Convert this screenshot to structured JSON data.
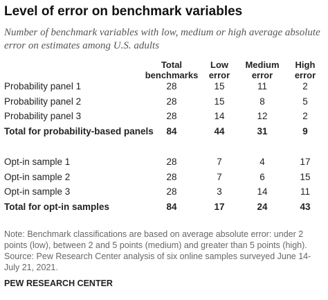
{
  "header": {
    "title": "Level of error on benchmark variables",
    "subtitle": "Number of benchmark variables with low, medium or high average absolute error on estimates among U.S. adults"
  },
  "table": {
    "columns": [
      "Total benchmarks",
      "Low error",
      "Medium error",
      "High error"
    ],
    "groups": [
      {
        "rows": [
          {
            "label": "Probability panel 1",
            "values": [
              28,
              15,
              11,
              2
            ]
          },
          {
            "label": "Probability panel 2",
            "values": [
              28,
              15,
              8,
              5
            ]
          },
          {
            "label": "Probability panel 3",
            "values": [
              28,
              14,
              12,
              2
            ]
          }
        ],
        "total": {
          "label": "Total for probability-based panels",
          "values": [
            84,
            44,
            31,
            9
          ]
        }
      },
      {
        "rows": [
          {
            "label": "Opt-in sample 1",
            "values": [
              28,
              7,
              4,
              17
            ]
          },
          {
            "label": "Opt-in sample 2",
            "values": [
              28,
              7,
              6,
              15
            ]
          },
          {
            "label": "Opt-in sample 3",
            "values": [
              28,
              3,
              14,
              11
            ]
          }
        ],
        "total": {
          "label": "Total for opt-in samples",
          "values": [
            84,
            17,
            24,
            43
          ]
        }
      }
    ]
  },
  "note": "Note: Benchmark classifications are based on average absolute error: under 2 points (low), between 2 and 5 points (medium) and greater than 5 points (high).",
  "source": "Source: Pew Research Center analysis of six online samples surveyed June 14-July 21, 2021.",
  "footer": "PEW RESEARCH CENTER"
}
